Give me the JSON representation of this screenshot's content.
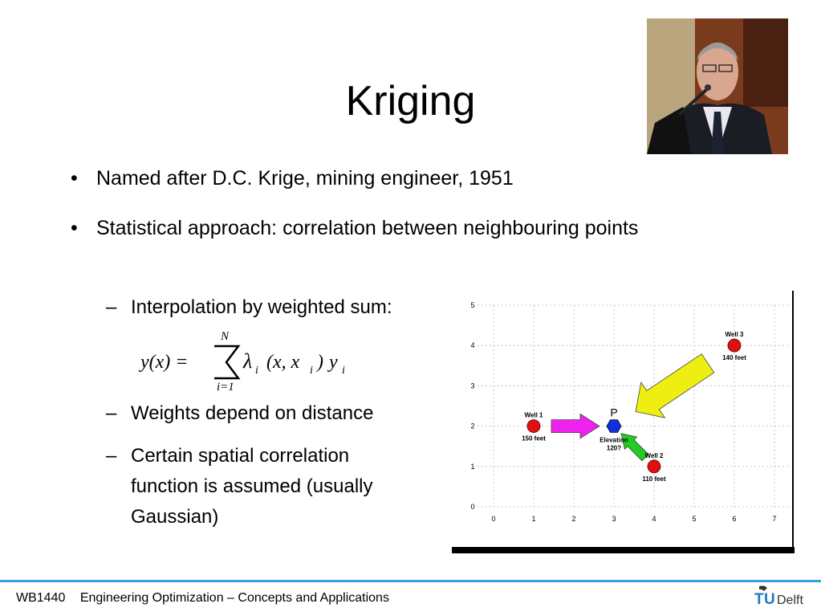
{
  "slide": {
    "title": "Kriging",
    "bullets": [
      "Named after D.C. Krige, mining engineer, 1951",
      "Statistical approach: correlation between neighbouring points"
    ],
    "subbullets": [
      "Interpolation by weighted sum:",
      "Weights depend on distance",
      "Certain spatial correlation function is assumed (usually Gaussian)"
    ]
  },
  "formula": {
    "lhs": "y(x) =",
    "sum_upper": "N",
    "sum_lower": "i=1",
    "lambda": "λ",
    "i": "i",
    "args": "(x, x",
    "close": ")",
    "y": "y"
  },
  "chart_data": {
    "type": "scatter",
    "x_ticks": [
      "0",
      "1",
      "2",
      "3",
      "4",
      "5",
      "6",
      "7"
    ],
    "y_ticks": [
      "0",
      "1",
      "2",
      "3",
      "4",
      "5"
    ],
    "xlim": [
      0,
      7
    ],
    "ylim": [
      0,
      5
    ],
    "grid": true,
    "points": [
      {
        "label": "Well 1",
        "value": "150 feet",
        "x": 1,
        "y": 2,
        "color": "#e01010"
      },
      {
        "label": "Well 2",
        "value": "110 feet",
        "x": 4,
        "y": 1,
        "color": "#e01010"
      },
      {
        "label": "Well 3",
        "value": "140 feet",
        "x": 6,
        "y": 4,
        "color": "#e01010"
      }
    ],
    "target": {
      "label": "P",
      "value_label": "Elevation",
      "value": "120?",
      "x": 3,
      "y": 2,
      "color": "#1030e0"
    },
    "arrows": [
      {
        "from": "Well 1",
        "color": "#ee22ee"
      },
      {
        "from": "Well 2",
        "color": "#22cc22"
      },
      {
        "from": "Well 3",
        "color": "#eeee11"
      }
    ]
  },
  "footer": {
    "course": "WB1440",
    "subject": "Engineering Optimization – Concepts and Applications",
    "logo_t": "T",
    "logo_u": "U",
    "logo_rest": "Delft"
  },
  "colors": {
    "accent_line": "#3aa0dc",
    "logo_blue": "#1e78c8"
  }
}
